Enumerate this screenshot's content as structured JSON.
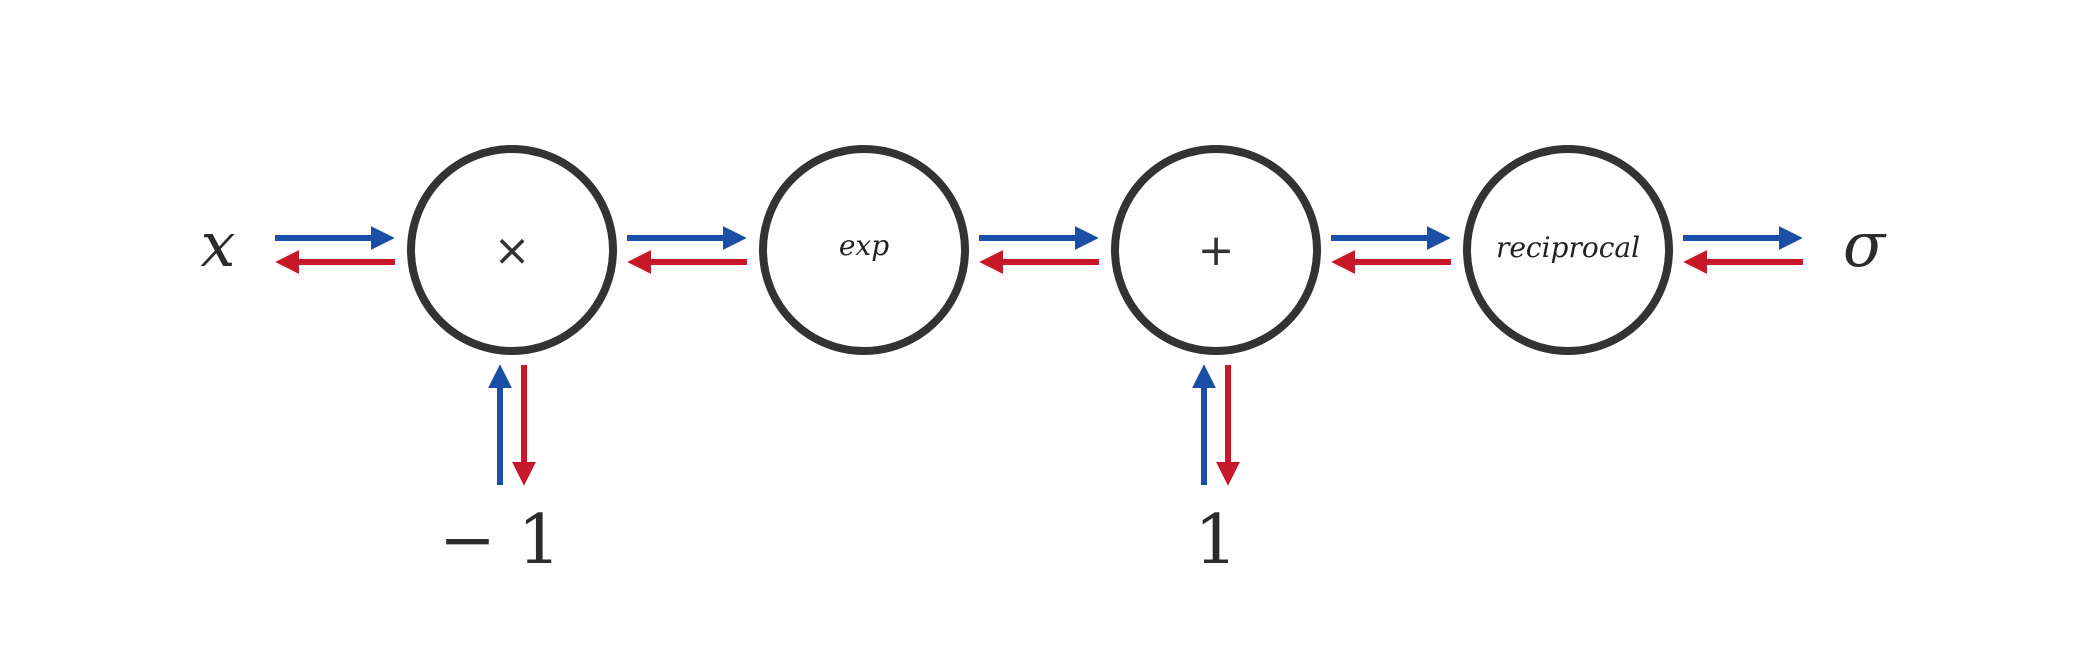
{
  "colors": {
    "forward_arrow": "#1a4fa8",
    "backward_arrow": "#c8182a",
    "node_stroke": "#333333",
    "text": "#2b2b2b"
  },
  "input_label": "x",
  "output_label": "σ",
  "nodes": [
    {
      "label": "×"
    },
    {
      "label": "exp"
    },
    {
      "label": "+"
    },
    {
      "label": "reciprocal"
    }
  ],
  "constants": [
    {
      "label": "− 1"
    },
    {
      "label": "1"
    }
  ],
  "arrow_legend": {
    "forward_color_name": "blue",
    "backward_color_name": "red"
  }
}
